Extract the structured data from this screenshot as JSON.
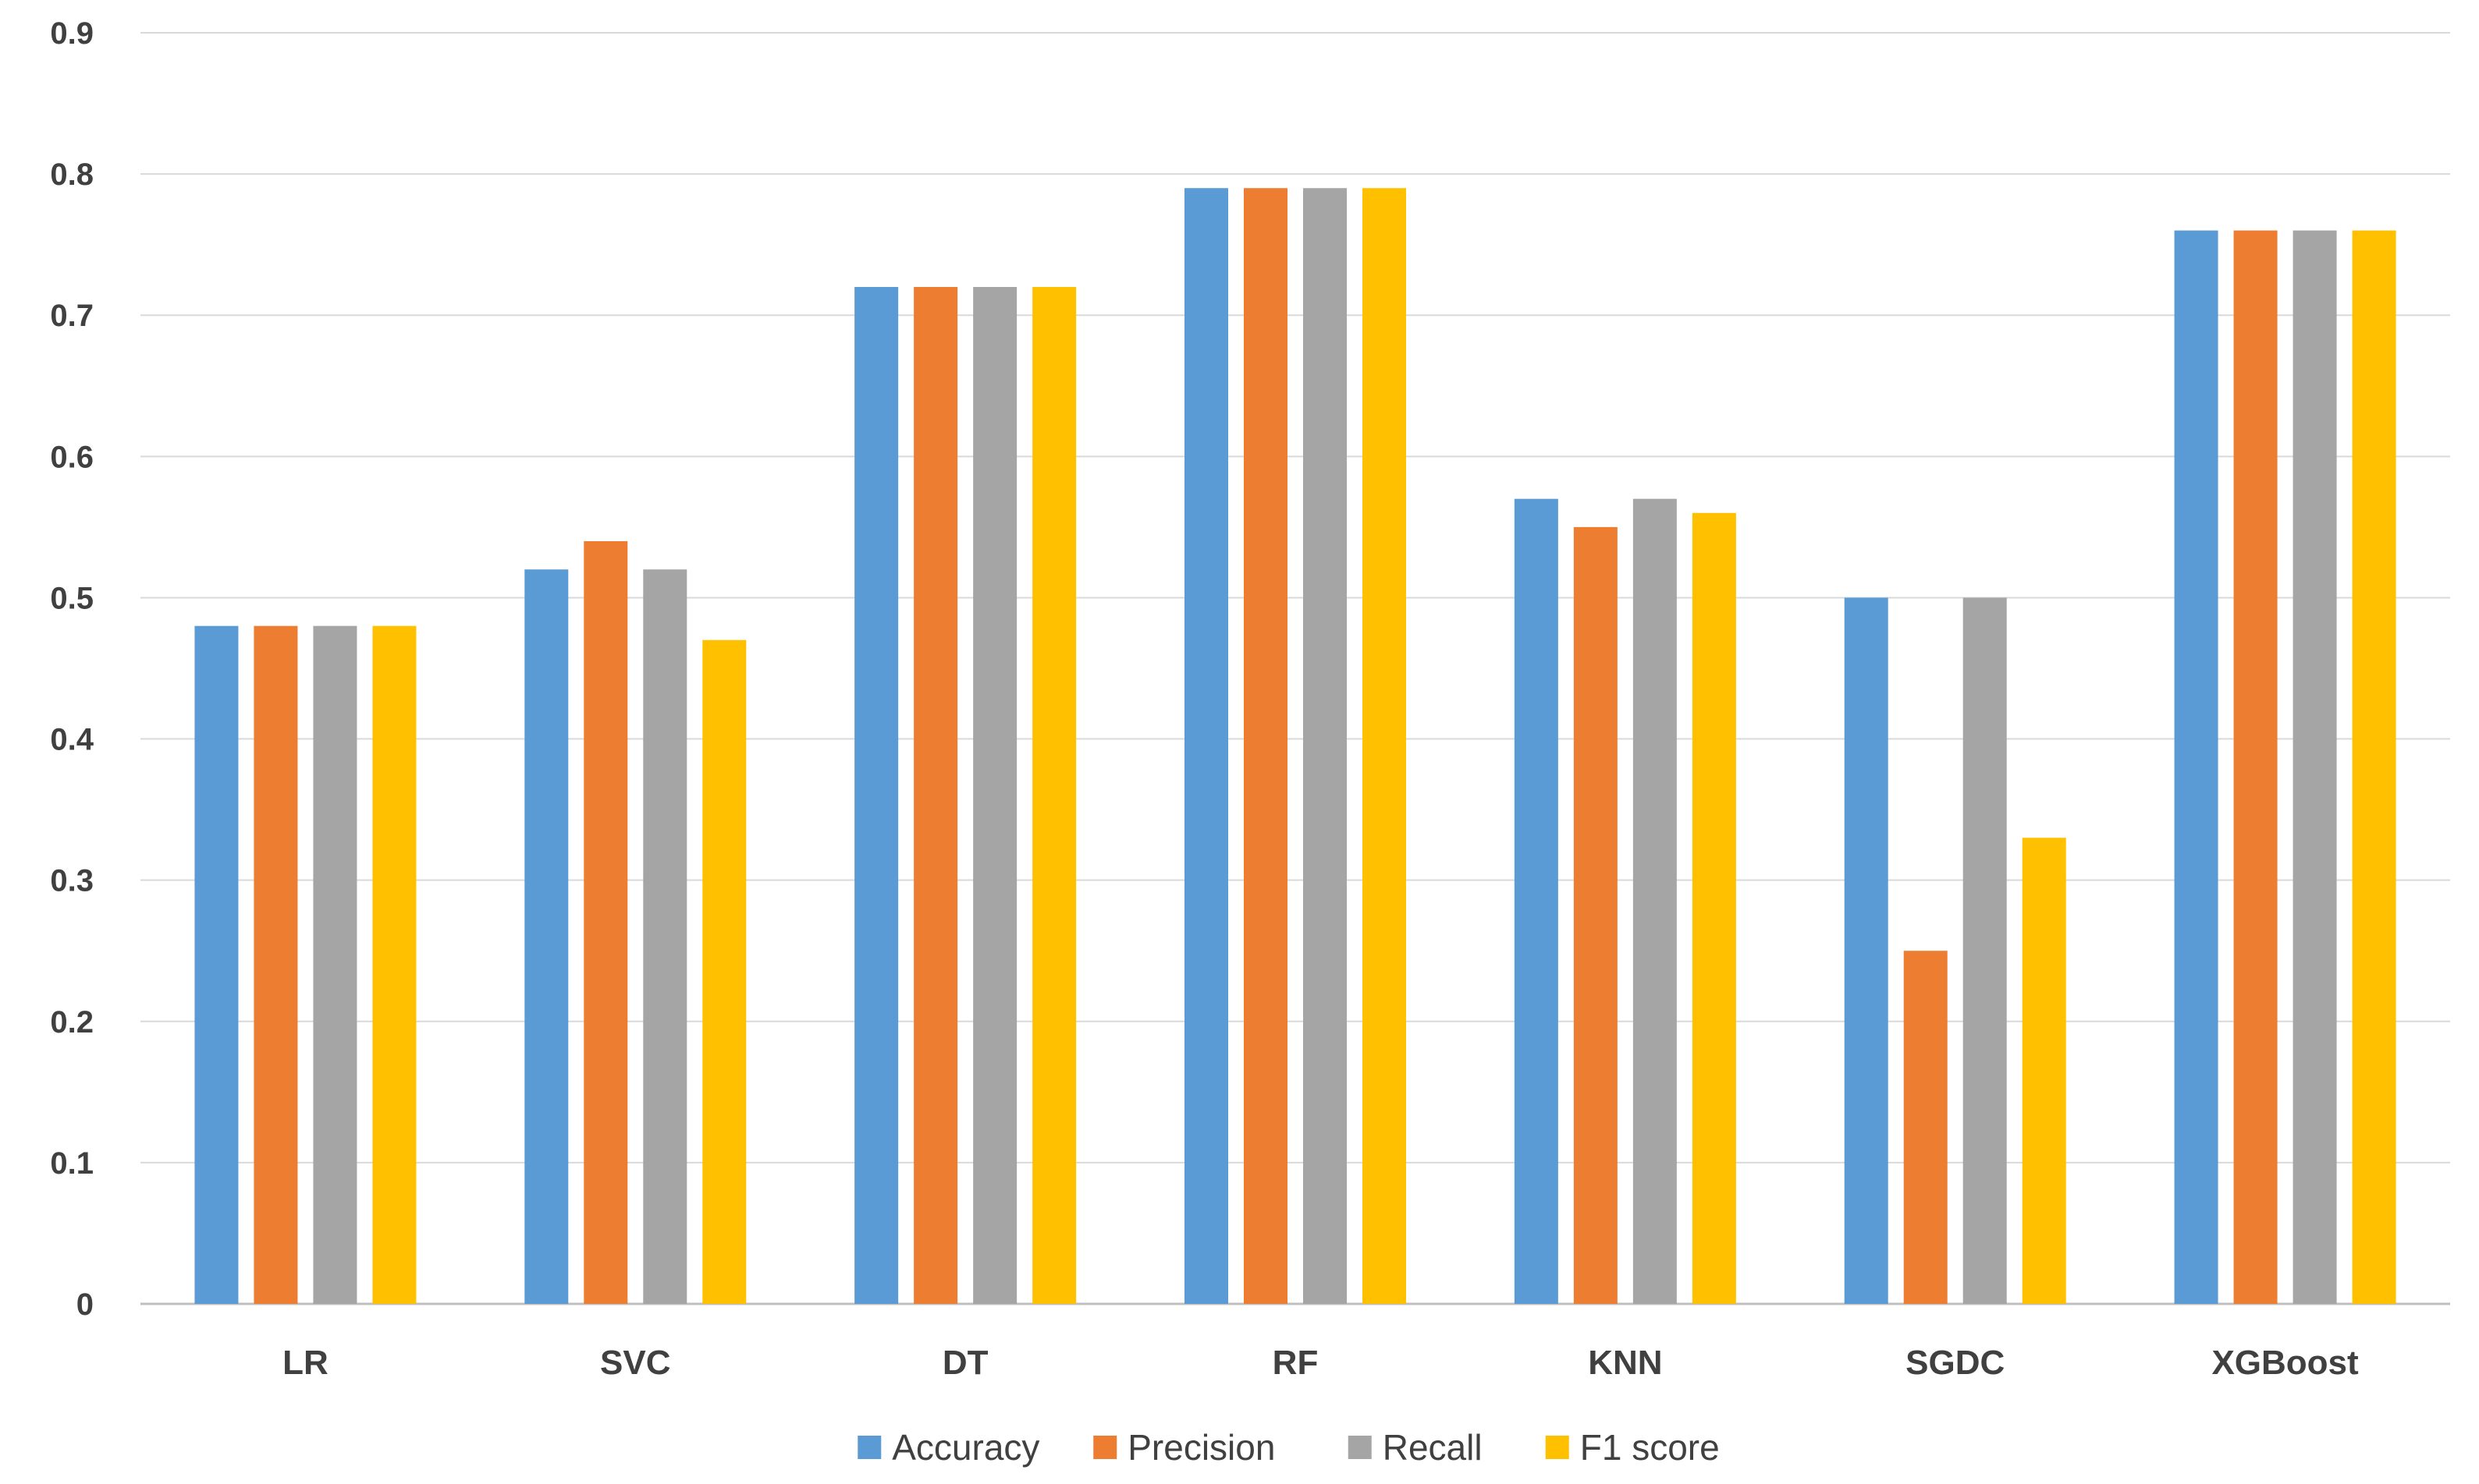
{
  "chart_data": {
    "type": "bar",
    "title": "",
    "xlabel": "",
    "ylabel": "",
    "ylim": [
      0,
      0.9
    ],
    "yticks": [
      "0",
      "0.1",
      "0.2",
      "0.3",
      "0.4",
      "0.5",
      "0.6",
      "0.7",
      "0.8",
      "0.9"
    ],
    "grid": true,
    "legend_position": "bottom",
    "categories": [
      "LR",
      "SVC",
      "DT",
      "RF",
      "KNN",
      "SGDC",
      "XGBoost"
    ],
    "series": [
      {
        "name": "Accuracy",
        "color": "#5B9BD5",
        "values": [
          0.48,
          0.52,
          0.72,
          0.79,
          0.57,
          0.5,
          0.76
        ]
      },
      {
        "name": "Precision",
        "color": "#ED7D31",
        "values": [
          0.48,
          0.54,
          0.72,
          0.79,
          0.55,
          0.25,
          0.76
        ]
      },
      {
        "name": "Recall",
        "color": "#A5A5A5",
        "values": [
          0.48,
          0.52,
          0.72,
          0.79,
          0.57,
          0.5,
          0.76
        ]
      },
      {
        "name": "F1 score",
        "color": "#FFC000",
        "values": [
          0.48,
          0.47,
          0.72,
          0.79,
          0.56,
          0.33,
          0.76
        ]
      }
    ]
  }
}
